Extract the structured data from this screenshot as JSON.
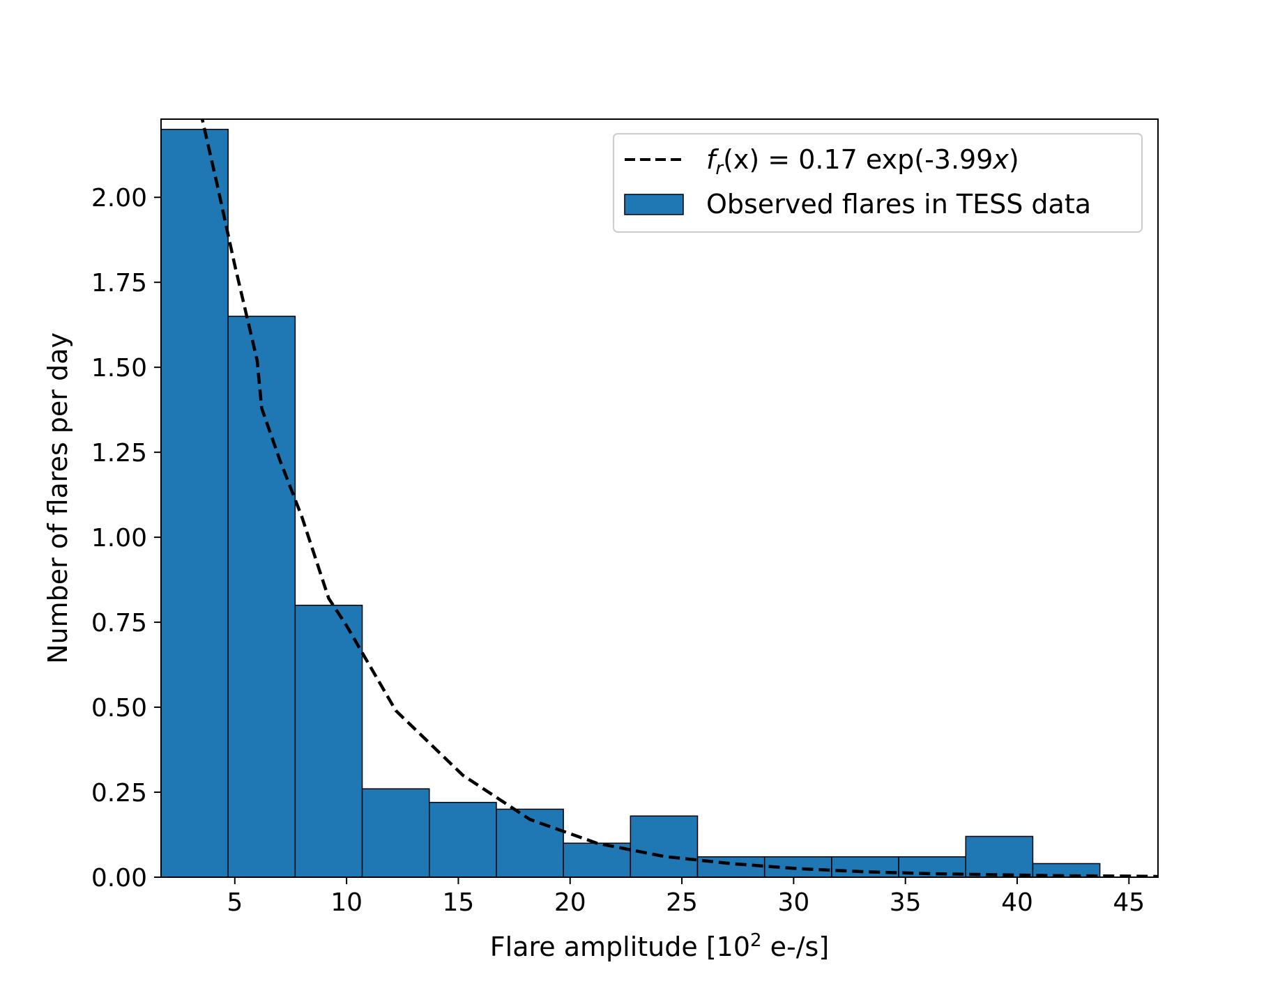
{
  "chart_data": {
    "type": "bar",
    "xlabel": "Flare amplitude [10",
    "xlabel_superscript": "2",
    "xlabel_suffix": " e-/s]",
    "ylabel": "Number of flares per day",
    "xlim": [
      1.7,
      46.3
    ],
    "ylim": [
      0,
      2.23
    ],
    "xticks": [
      5,
      10,
      15,
      20,
      25,
      30,
      35,
      40,
      45
    ],
    "yticks": [
      0.0,
      0.25,
      0.5,
      0.75,
      1.0,
      1.25,
      1.5,
      1.75,
      2.0
    ],
    "ytick_labels": [
      "0.00",
      "0.25",
      "0.50",
      "0.75",
      "1.00",
      "1.25",
      "1.50",
      "1.75",
      "2.00"
    ],
    "grid": false,
    "legend_position": "top-right",
    "histogram": {
      "name": "Observed flares in TESS data",
      "color": "#1f77b4",
      "edge_color": "#000000",
      "bins": [
        {
          "x0": 1.7,
          "x1": 4.7,
          "value": 2.2
        },
        {
          "x0": 4.7,
          "x1": 7.7,
          "value": 1.65
        },
        {
          "x0": 7.7,
          "x1": 10.7,
          "value": 0.8
        },
        {
          "x0": 10.7,
          "x1": 13.7,
          "value": 0.26
        },
        {
          "x0": 13.7,
          "x1": 16.7,
          "value": 0.22
        },
        {
          "x0": 16.7,
          "x1": 19.7,
          "value": 0.2
        },
        {
          "x0": 19.7,
          "x1": 22.7,
          "value": 0.1
        },
        {
          "x0": 22.7,
          "x1": 25.7,
          "value": 0.18
        },
        {
          "x0": 25.7,
          "x1": 28.7,
          "value": 0.06
        },
        {
          "x0": 28.7,
          "x1": 31.7,
          "value": 0.06
        },
        {
          "x0": 31.7,
          "x1": 34.7,
          "value": 0.06
        },
        {
          "x0": 34.7,
          "x1": 37.7,
          "value": 0.06
        },
        {
          "x0": 37.7,
          "x1": 40.7,
          "value": 0.12
        },
        {
          "x0": 40.7,
          "x1": 43.7,
          "value": 0.04
        }
      ]
    },
    "fit": {
      "legend_prefix": "f",
      "legend_subscript": "r",
      "legend_mid": "(x) = 0.17 exp(-3.99",
      "legend_var": "x",
      "legend_suffix": ")",
      "color": "#000000",
      "style": "dashed",
      "points": [
        {
          "x": 3.3,
          "y": 2.3
        },
        {
          "x": 4.2,
          "y": 2.04
        },
        {
          "x": 5.0,
          "y": 1.8
        },
        {
          "x": 6.0,
          "y": 1.52
        },
        {
          "x": 6.2,
          "y": 1.38
        },
        {
          "x": 7.0,
          "y": 1.23
        },
        {
          "x": 8.0,
          "y": 1.06
        },
        {
          "x": 9.2,
          "y": 0.82
        },
        {
          "x": 10.0,
          "y": 0.74
        },
        {
          "x": 12.2,
          "y": 0.49
        },
        {
          "x": 15.2,
          "y": 0.3
        },
        {
          "x": 18.2,
          "y": 0.17
        },
        {
          "x": 21.2,
          "y": 0.1
        },
        {
          "x": 24.2,
          "y": 0.061
        },
        {
          "x": 27.2,
          "y": 0.04
        },
        {
          "x": 30.2,
          "y": 0.025
        },
        {
          "x": 33.2,
          "y": 0.016
        },
        {
          "x": 36.2,
          "y": 0.01
        },
        {
          "x": 39.2,
          "y": 0.007
        },
        {
          "x": 42.2,
          "y": 0.004
        },
        {
          "x": 45.2,
          "y": 0.003
        },
        {
          "x": 46.3,
          "y": 0.002
        }
      ]
    }
  }
}
